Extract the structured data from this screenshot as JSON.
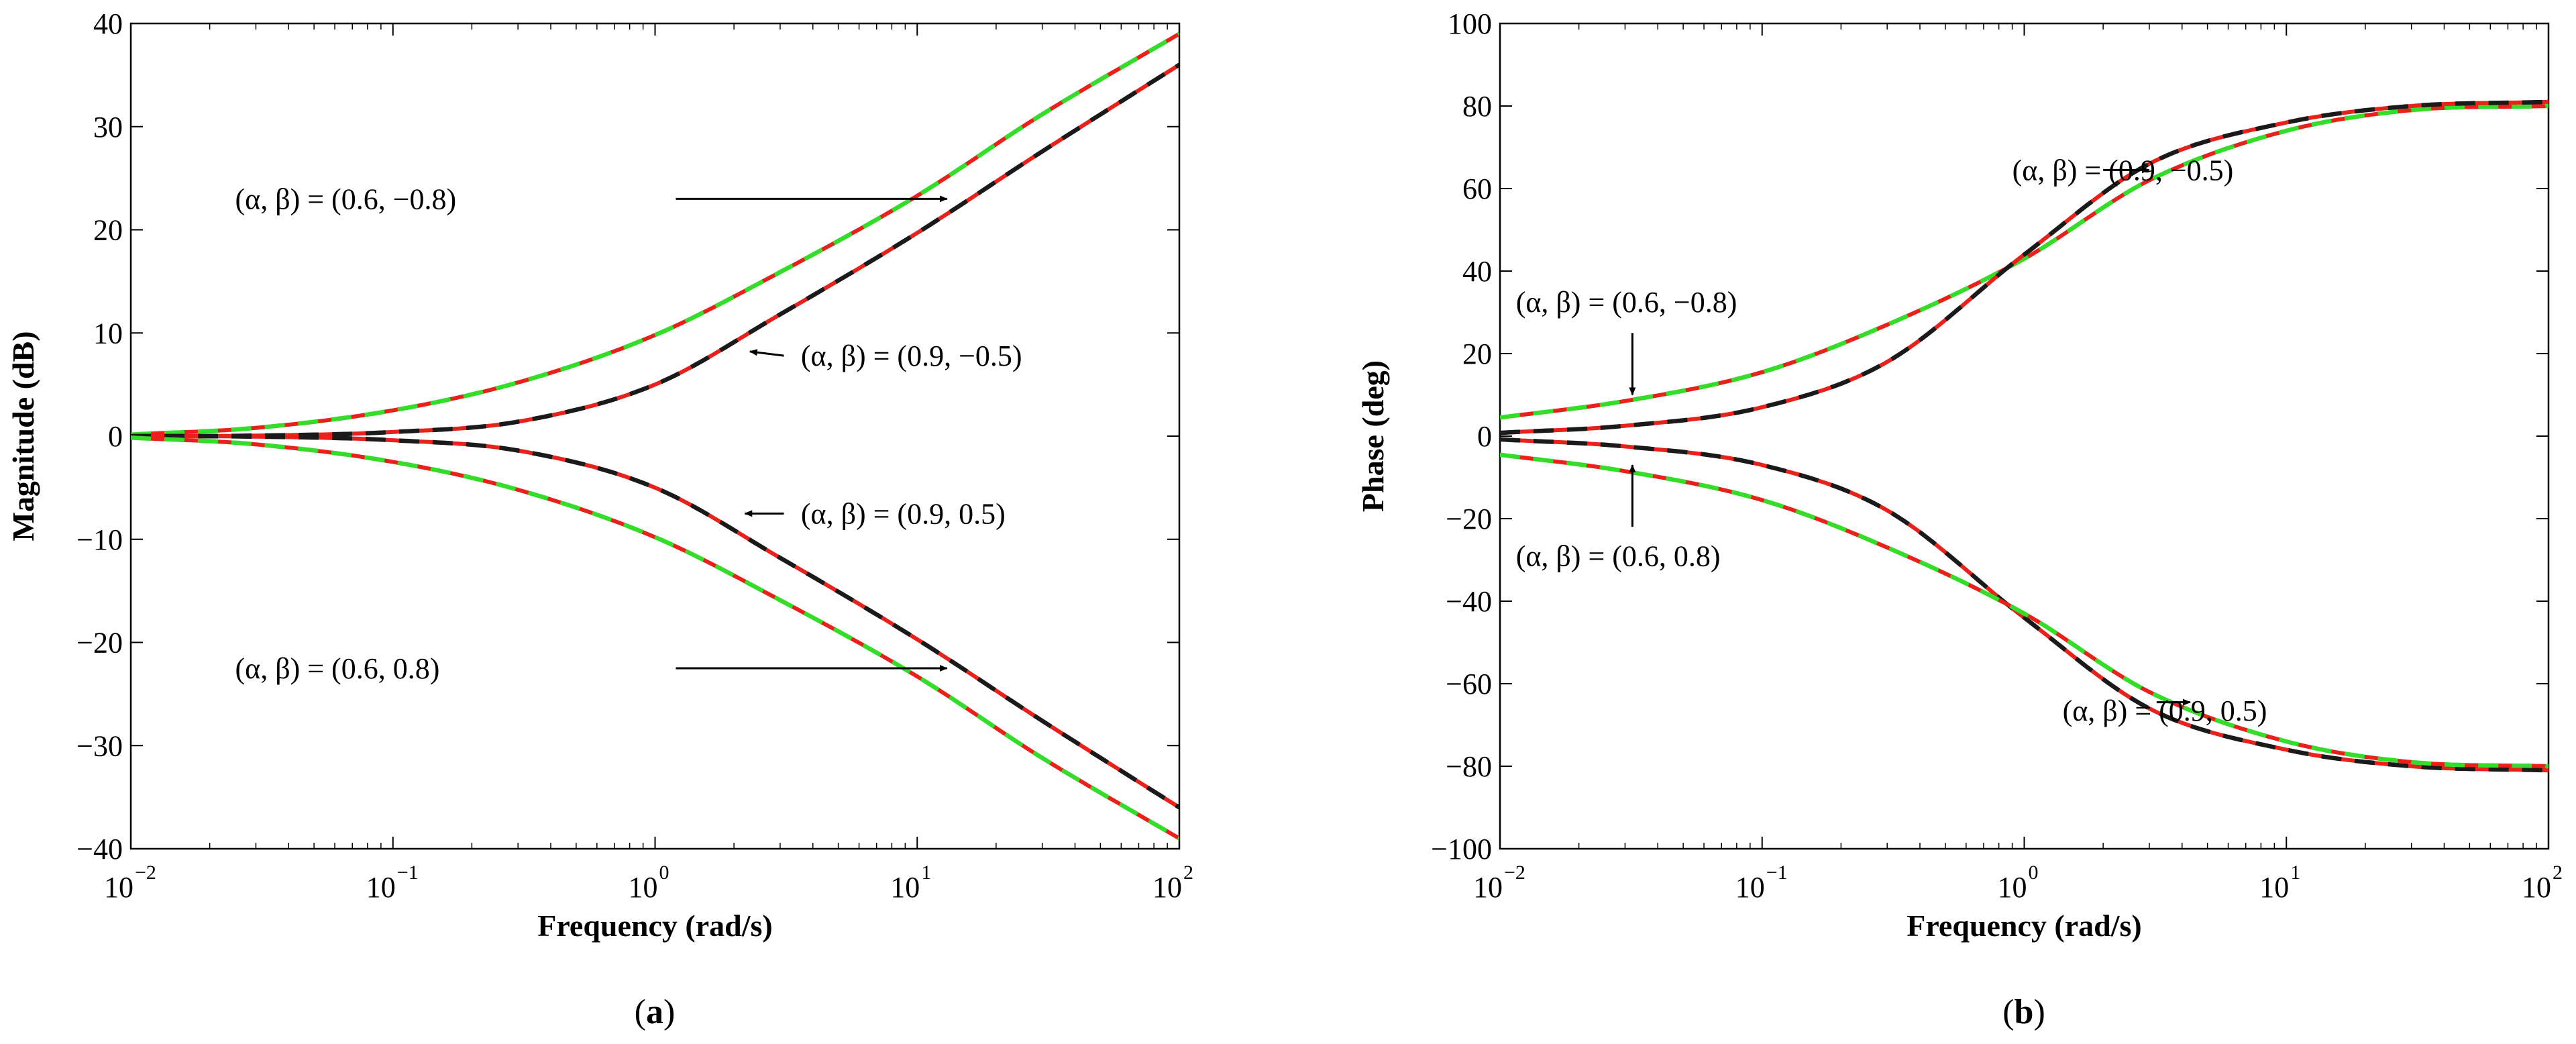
{
  "chart_data": [
    {
      "type": "line",
      "caption": "a",
      "xlabel": "Frequency (rad/s)",
      "ylabel": "Magnitude (dB)",
      "xscale": "log",
      "xlim": [
        0.01,
        100
      ],
      "ylim": [
        -40,
        40
      ],
      "x_ticks": [
        {
          "base": "10",
          "exp": "−2"
        },
        {
          "base": "10",
          "exp": "−1"
        },
        {
          "base": "10",
          "exp": "0"
        },
        {
          "base": "10",
          "exp": "1"
        },
        {
          "base": "10",
          "exp": "2"
        }
      ],
      "y_ticks": [
        "−40",
        "−30",
        "−20",
        "−10",
        "0",
        "10",
        "20",
        "30",
        "40"
      ],
      "legend_colors": {
        "exact": "#e8211b",
        "approx_a": "#1a1a1a",
        "approx_b": "#33dd2a"
      },
      "series": [
        {
          "name": "(α, β) = (0.6, −0.8)",
          "x": [
            0.01,
            0.03,
            0.1,
            0.3,
            1,
            3,
            10,
            30,
            100
          ],
          "y": [
            0.15,
            0.8,
            2.5,
            5.2,
            9.8,
            15.9,
            23.3,
            31.2,
            39.0
          ]
        },
        {
          "name": "(α, β) = (0.9, −0.5)",
          "x": [
            0.01,
            0.03,
            0.1,
            0.3,
            1,
            3,
            10,
            30,
            100
          ],
          "y": [
            0.0,
            0.05,
            0.4,
            1.4,
            5.0,
            11.8,
            19.7,
            27.6,
            36.0
          ]
        },
        {
          "name": "(α, β) = (0.9, 0.5)",
          "x": [
            0.01,
            0.03,
            0.1,
            0.3,
            1,
            3,
            10,
            30,
            100
          ],
          "y": [
            0.0,
            -0.05,
            -0.4,
            -1.4,
            -5.0,
            -11.8,
            -19.7,
            -27.6,
            -36.0
          ]
        },
        {
          "name": "(α, β) = (0.6, 0.8)",
          "x": [
            0.01,
            0.03,
            0.1,
            0.3,
            1,
            3,
            10,
            30,
            100
          ],
          "y": [
            -0.15,
            -0.8,
            -2.5,
            -5.2,
            -9.8,
            -15.9,
            -23.3,
            -31.2,
            -39.0
          ]
        }
      ],
      "annotations": [
        {
          "text": "(α, β) = (0.6, −0.8)",
          "x": 0.025,
          "y": 23,
          "ax": 1.2,
          "ay": 23,
          "tx": 13,
          "ty": 23
        },
        {
          "text": "(α, β) = (0.9, −0.5)",
          "x": 3.6,
          "y": 7.8,
          "ax": 3.1,
          "ay": 7.8,
          "tx": 2.3,
          "ty": 8.2
        },
        {
          "text": "(α, β) = (0.9, 0.5)",
          "x": 3.6,
          "y": -7.5,
          "ax": 3.1,
          "ay": -7.5,
          "tx": 2.2,
          "ty": -7.5
        },
        {
          "text": "(α, β) = (0.6, 0.8)",
          "x": 0.025,
          "y": -22.5,
          "ax": 1.2,
          "ay": -22.5,
          "tx": 13,
          "ty": -22.5
        }
      ]
    },
    {
      "type": "line",
      "caption": "b",
      "xlabel": "Frequency (rad/s)",
      "ylabel": "Phase (deg)",
      "xscale": "log",
      "xlim": [
        0.01,
        100
      ],
      "ylim": [
        -100,
        100
      ],
      "x_ticks": [
        {
          "base": "10",
          "exp": "−2"
        },
        {
          "base": "10",
          "exp": "−1"
        },
        {
          "base": "10",
          "exp": "0"
        },
        {
          "base": "10",
          "exp": "1"
        },
        {
          "base": "10",
          "exp": "2"
        }
      ],
      "y_ticks": [
        "−100",
        "−80",
        "−60",
        "−40",
        "−20",
        "0",
        "20",
        "40",
        "60",
        "80",
        "100"
      ],
      "legend_colors": {
        "exact": "#e8211b",
        "approx_a": "#1a1a1a",
        "approx_b": "#33dd2a"
      },
      "series": [
        {
          "name": "(α, β) = (0.6, −0.8)",
          "x": [
            0.01,
            0.03,
            0.1,
            0.3,
            1,
            3,
            10,
            30,
            100
          ],
          "y": [
            4.5,
            8.5,
            15.5,
            27,
            43,
            62,
            74,
            79,
            80
          ]
        },
        {
          "name": "(α, β) = (0.9, −0.5)",
          "x": [
            0.01,
            0.03,
            0.1,
            0.3,
            1,
            3,
            10,
            30,
            100
          ],
          "y": [
            0.8,
            2.5,
            7,
            18,
            44,
            66,
            76,
            80,
            81
          ]
        },
        {
          "name": "(α, β) = (0.9, 0.5)",
          "x": [
            0.01,
            0.03,
            0.1,
            0.3,
            1,
            3,
            10,
            30,
            100
          ],
          "y": [
            -0.8,
            -2.5,
            -7,
            -18,
            -44,
            -66,
            -76,
            -80,
            -81
          ]
        },
        {
          "name": "(α, β) = (0.6, 0.8)",
          "x": [
            0.01,
            0.03,
            0.1,
            0.3,
            1,
            3,
            10,
            30,
            100
          ],
          "y": [
            -4.5,
            -8.5,
            -15.5,
            -27,
            -43,
            -62,
            -74,
            -79,
            -80
          ]
        }
      ],
      "annotations": [
        {
          "text": "(α, β) = (0.9, −0.5)",
          "x": 0.9,
          "y": 64.5,
          "ax": 2.0,
          "ay": 64.5,
          "tx": 3.0,
          "ty": 64.5
        },
        {
          "text": "(α, β) = (0.6, −0.8)",
          "x": 0.0115,
          "y": 32.5,
          "ax": 0.032,
          "ay": 25,
          "tx": 0.032,
          "ty": 10
        },
        {
          "text": "(α, β) = (0.6, 0.8)",
          "x": 0.0115,
          "y": -29,
          "ax": 0.032,
          "ay": -22,
          "tx": 0.032,
          "ty": -7
        },
        {
          "text": "(α, β) = (0.9, 0.5)",
          "x": 1.4,
          "y": -66.5,
          "ax": 3.2,
          "ay": -64.5,
          "tx": 4.3,
          "ty": -64.5
        }
      ]
    }
  ]
}
